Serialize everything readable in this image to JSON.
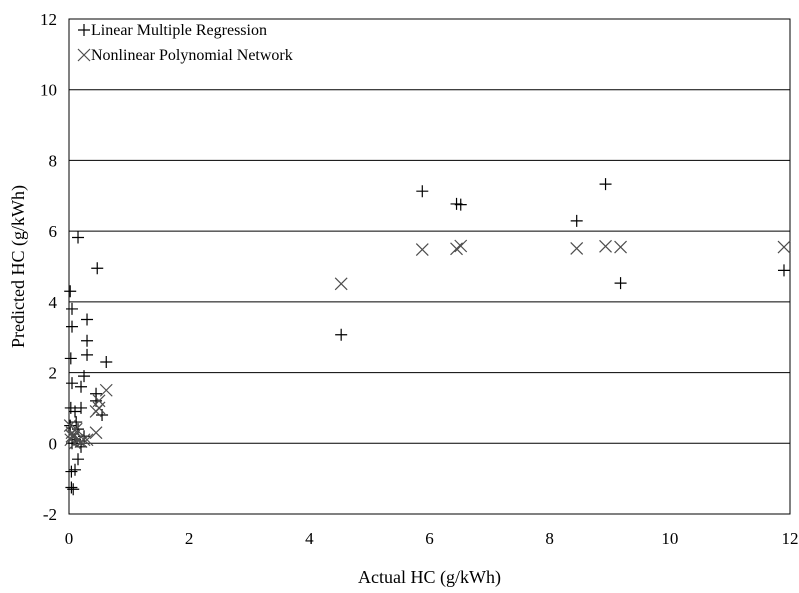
{
  "chart_data": {
    "type": "scatter",
    "xlabel": "Actual HC (g/kWh)",
    "ylabel": "Predicted HC (g/kWh)",
    "xlim": [
      0,
      12
    ],
    "ylim": [
      -2,
      12
    ],
    "x_ticks": [
      0,
      2,
      4,
      6,
      8,
      10,
      12
    ],
    "y_ticks": [
      -2,
      0,
      2,
      4,
      6,
      8,
      10,
      12
    ],
    "x_tick_labels": [
      "0",
      "2",
      "4",
      "6",
      "8",
      "10",
      "12"
    ],
    "y_tick_labels": [
      "-2",
      "0",
      "2",
      "4",
      "6",
      "8",
      "10",
      "12"
    ],
    "grid": "horizontal",
    "legend_position": "top-left",
    "series": [
      {
        "name": "Linear Multiple Regression",
        "marker": "plus",
        "color": "#000000",
        "points": [
          [
            4.53,
            3.07
          ],
          [
            5.88,
            7.13
          ],
          [
            6.45,
            6.77
          ],
          [
            6.52,
            6.75
          ],
          [
            8.45,
            6.29
          ],
          [
            8.93,
            7.33
          ],
          [
            9.18,
            4.53
          ],
          [
            11.9,
            4.89
          ],
          [
            0.15,
            5.82
          ],
          [
            0.47,
            4.95
          ],
          [
            0.02,
            4.3
          ],
          [
            0.05,
            3.8
          ],
          [
            0.05,
            3.3
          ],
          [
            0.3,
            3.5
          ],
          [
            0.3,
            2.9
          ],
          [
            0.3,
            2.5
          ],
          [
            0.62,
            2.3
          ],
          [
            0.03,
            2.4
          ],
          [
            0.25,
            1.9
          ],
          [
            0.2,
            1.6
          ],
          [
            0.05,
            1.7
          ],
          [
            0.45,
            1.4
          ],
          [
            0.45,
            1.2
          ],
          [
            0.2,
            1.0
          ],
          [
            0.1,
            0.9
          ],
          [
            0.55,
            0.8
          ],
          [
            0.02,
            0.5
          ],
          [
            0.15,
            0.4
          ],
          [
            0.25,
            0.2
          ],
          [
            0.1,
            0.1
          ],
          [
            0.05,
            0.0
          ],
          [
            0.2,
            -0.1
          ],
          [
            0.15,
            -0.45
          ],
          [
            0.1,
            -0.75
          ],
          [
            0.04,
            -0.8
          ],
          [
            0.04,
            -1.25
          ],
          [
            0.07,
            -1.3
          ],
          [
            0.03,
            1.0
          ],
          [
            0.12,
            0.6
          ]
        ]
      },
      {
        "name": "Nonlinear Polynomial Network",
        "marker": "x",
        "color": "#4d4d4d",
        "points": [
          [
            4.53,
            4.51
          ],
          [
            5.88,
            5.48
          ],
          [
            6.45,
            5.5
          ],
          [
            6.52,
            5.58
          ],
          [
            8.45,
            5.51
          ],
          [
            8.93,
            5.57
          ],
          [
            9.18,
            5.55
          ],
          [
            11.9,
            5.55
          ],
          [
            0.62,
            1.5
          ],
          [
            0.5,
            1.2
          ],
          [
            0.45,
            0.9
          ],
          [
            0.5,
            1.0
          ],
          [
            0.45,
            0.3
          ],
          [
            0.02,
            0.5
          ],
          [
            0.05,
            0.3
          ],
          [
            0.08,
            0.2
          ],
          [
            0.1,
            0.0
          ],
          [
            0.15,
            0.1
          ],
          [
            0.2,
            0.05
          ],
          [
            0.25,
            0.1
          ],
          [
            0.3,
            0.1
          ],
          [
            0.05,
            0.2
          ],
          [
            0.12,
            0.4
          ],
          [
            0.03,
            0.1
          ]
        ]
      }
    ]
  }
}
